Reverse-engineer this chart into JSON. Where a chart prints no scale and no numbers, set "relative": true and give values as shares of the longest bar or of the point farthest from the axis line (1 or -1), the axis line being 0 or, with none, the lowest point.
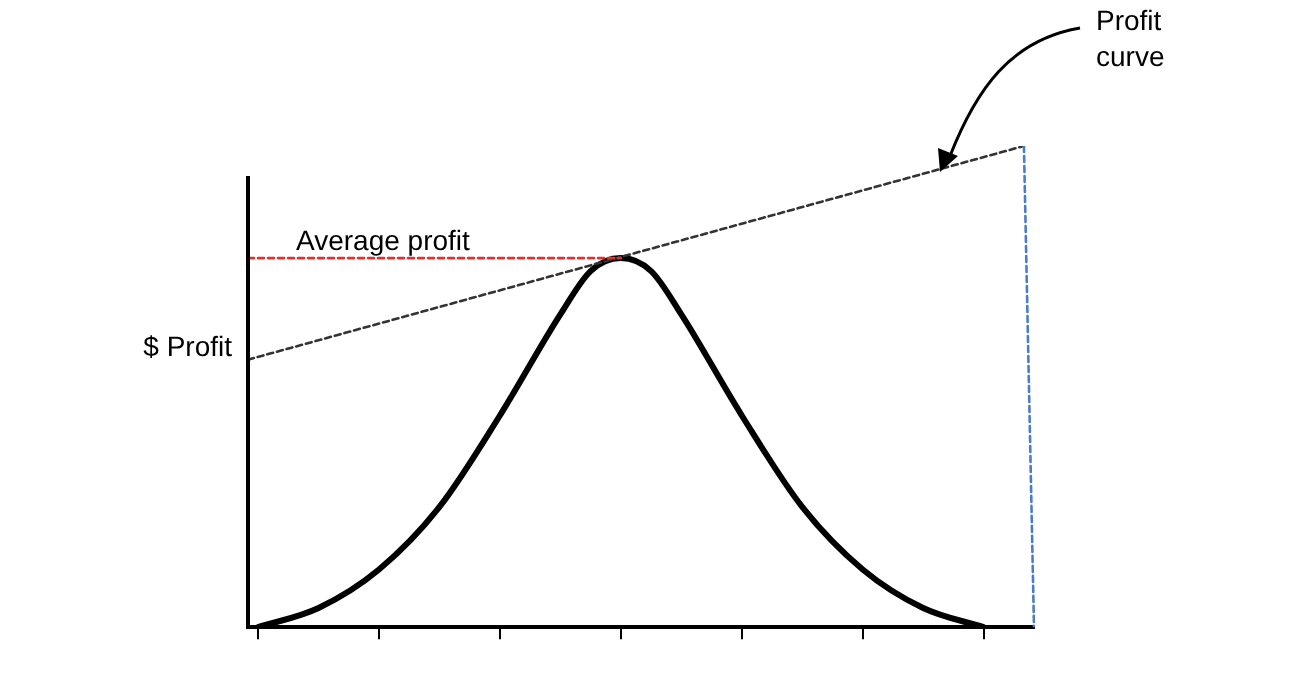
{
  "chart_data": {
    "type": "line",
    "relative": true,
    "ylabel": "$ Profit",
    "annotations": [
      "Profit curve"
    ],
    "legend": false,
    "grid": false,
    "marker": "none",
    "categories": [
      null,
      null,
      null,
      null,
      null,
      null,
      null,
      null,
      null,
      null,
      null,
      null,
      null,
      null,
      null,
      null,
      null,
      null,
      null,
      null,
      null,
      null,
      null,
      null,
      null,
      null,
      null,
      null,
      null,
      null,
      null,
      null,
      null,
      null,
      null,
      null,
      null,
      null,
      null,
      null,
      null,
      null,
      null,
      null,
      null,
      null,
      null,
      null,
      null,
      null,
      null,
      null,
      null,
      null,
      null,
      null,
      null,
      null,
      null,
      null,
      null,
      null,
      null,
      null,
      null,
      null,
      null,
      null,
      null,
      null,
      null,
      null,
      null,
      null,
      null,
      null,
      null,
      null,
      null
    ],
    "series": [
      {
        "type": "line",
        "color": "#000000",
        "line_style": "solid",
        "values": [
          null,
          0.0,
          null,
          null,
          null,
          null,
          null,
          0.04,
          null,
          null,
          null,
          null,
          null,
          0.12,
          null,
          null,
          null,
          null,
          null,
          0.25,
          null,
          null,
          null,
          null,
          null,
          0.44,
          null,
          null,
          null,
          null,
          null,
          0.65,
          null,
          null,
          0.74,
          null,
          null,
          0.767,
          null,
          null,
          0.74,
          null,
          null,
          0.65,
          null,
          null,
          null,
          null,
          null,
          0.44,
          null,
          null,
          null,
          null,
          null,
          0.25,
          null,
          null,
          null,
          null,
          null,
          0.12,
          null,
          null,
          null,
          null,
          null,
          0.04,
          null,
          null,
          null,
          null,
          null,
          0.0,
          null,
          null,
          null,
          null,
          null
        ]
      },
      {
        "type": "line",
        "color": "#333333",
        "line_style": "dashed",
        "values": [
          0.556,
          null,
          null,
          null,
          null,
          null,
          null,
          null,
          null,
          null,
          null,
          null,
          null,
          null,
          null,
          null,
          null,
          null,
          null,
          null,
          null,
          null,
          null,
          null,
          null,
          null,
          null,
          null,
          null,
          null,
          null,
          null,
          null,
          null,
          null,
          null,
          null,
          null,
          null,
          null,
          null,
          null,
          null,
          null,
          null,
          null,
          null,
          null,
          null,
          null,
          null,
          null,
          null,
          null,
          null,
          null,
          null,
          null,
          null,
          null,
          null,
          null,
          null,
          null,
          null,
          null,
          null,
          null,
          null,
          null,
          null,
          null,
          null,
          null,
          null,
          null,
          null,
          1,
          null
        ]
      },
      {
        "type": "line",
        "name": "Average profit",
        "color": "#e03030",
        "line_style": "dashed",
        "values": [
          0.767,
          null,
          null,
          null,
          null,
          null,
          null,
          null,
          null,
          null,
          null,
          null,
          null,
          null,
          null,
          null,
          null,
          null,
          null,
          null,
          null,
          null,
          null,
          null,
          null,
          null,
          null,
          null,
          null,
          null,
          null,
          null,
          null,
          null,
          null,
          null,
          null,
          0.767,
          null,
          null,
          null,
          null,
          null,
          null,
          null,
          null,
          null,
          null,
          null,
          null,
          null,
          null,
          null,
          null,
          null,
          null,
          null,
          null,
          null,
          null,
          null,
          null,
          null,
          null,
          null,
          null,
          null,
          null,
          null,
          null,
          null,
          null,
          null,
          null,
          null,
          null,
          null,
          null,
          null
        ]
      },
      {
        "type": "line",
        "color": "#4a7cc9",
        "line_style": "dashed",
        "values": [
          null,
          null,
          null,
          null,
          null,
          null,
          null,
          null,
          null,
          null,
          null,
          null,
          null,
          null,
          null,
          null,
          null,
          null,
          null,
          null,
          null,
          null,
          null,
          null,
          null,
          null,
          null,
          null,
          null,
          null,
          null,
          null,
          null,
          null,
          null,
          null,
          null,
          null,
          null,
          null,
          null,
          null,
          null,
          null,
          null,
          null,
          null,
          null,
          null,
          null,
          null,
          null,
          null,
          null,
          null,
          null,
          null,
          null,
          null,
          null,
          null,
          null,
          null,
          null,
          null,
          null,
          null,
          null,
          null,
          null,
          null,
          null,
          null,
          null,
          null,
          null,
          null,
          1,
          0
        ]
      }
    ]
  }
}
